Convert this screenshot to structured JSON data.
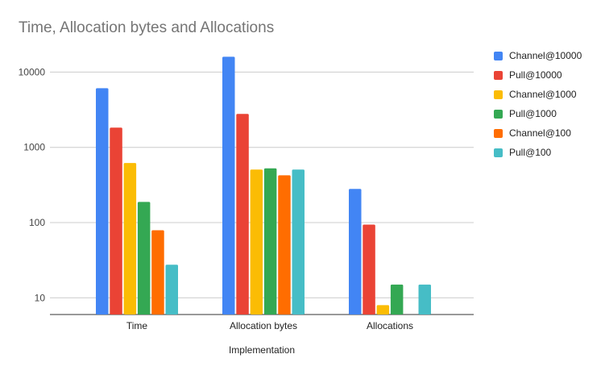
{
  "chart_data": {
    "type": "bar",
    "title": "Time, Allocation bytes and Allocations",
    "xlabel": "Implementation",
    "ylabel": "",
    "yscale": "log",
    "ylim": [
      6,
      20000
    ],
    "yticks": [
      "10",
      "100",
      "1000",
      "10000"
    ],
    "grid": true,
    "legend_position": "right",
    "categories": [
      "Time",
      "Allocation bytes",
      "Allocations"
    ],
    "series": [
      {
        "name": "Channel@10000",
        "color": "#4285f4",
        "values": [
          6100,
          16000,
          280
        ]
      },
      {
        "name": "Pull@10000",
        "color": "#ea4335",
        "values": [
          1830,
          2780,
          94
        ]
      },
      {
        "name": "Channel@1000",
        "color": "#fbbc04",
        "values": [
          620,
          506,
          8
        ]
      },
      {
        "name": "Pull@1000",
        "color": "#34a853",
        "values": [
          188,
          525,
          15
        ]
      },
      {
        "name": "Channel@100",
        "color": "#ff6d01",
        "values": [
          79,
          425,
          null
        ]
      },
      {
        "name": "Pull@100",
        "color": "#46bdc6",
        "values": [
          27.5,
          506,
          15
        ]
      }
    ]
  }
}
